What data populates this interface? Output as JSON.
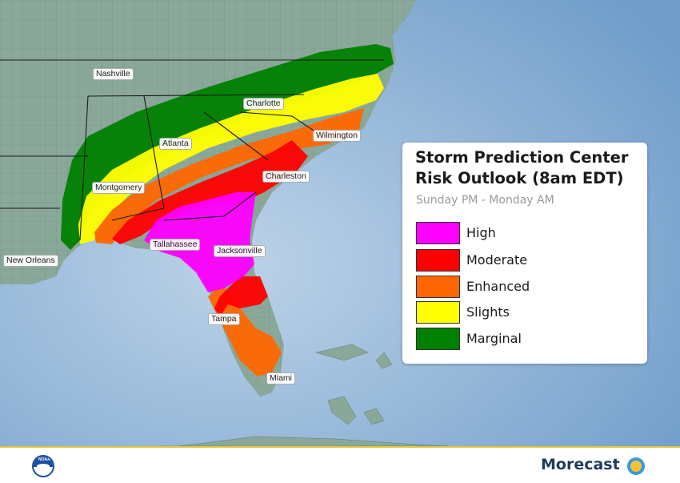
{
  "legend": {
    "title": "Storm Prediction Center Risk Outlook (8am EDT)",
    "subtitle": "Sunday PM - Monday AM",
    "categories": [
      {
        "label": "High",
        "color": "#ff00ff"
      },
      {
        "label": "Moderate",
        "color": "#ff0000"
      },
      {
        "label": "Enhanced",
        "color": "#ff6600"
      },
      {
        "label": "Slights",
        "color": "#ffff00"
      },
      {
        "label": "Marginal",
        "color": "#008000"
      }
    ]
  },
  "cities": {
    "nashville": "Nashville",
    "charlotte": "Charlotte",
    "wilmington": "Wilmington",
    "atlanta": "Atlanta",
    "charleston": "Charleston",
    "montgomery": "Montgomery",
    "tallahassee": "Tallahassee",
    "jacksonville": "Jacksonville",
    "new_orleans": "New Orleans",
    "tampa": "Tampa",
    "miami": "Miami"
  },
  "footer": {
    "noaa_logo_text": "NOAA",
    "brand": "Morecast"
  },
  "colors": {
    "ocean": "#8fb3d6",
    "land": "#8aa89a",
    "gulf_accent": "#e7c53a"
  }
}
